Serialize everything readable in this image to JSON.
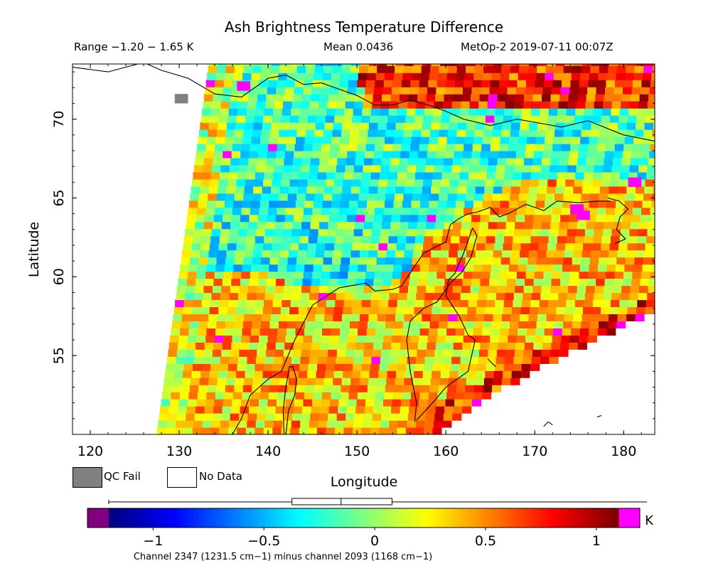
{
  "header": {
    "title": "Ash Brightness Temperature Difference",
    "range": "Range −1.20 − 1.65 K",
    "mean": "Mean 0.0436",
    "satellite": "MetOp-2 2019-07-11 00:07Z"
  },
  "chart_data": {
    "type": "heatmap",
    "title": "Ash Brightness Temperature Difference",
    "xlabel": "Longitude",
    "ylabel": "Latitude",
    "xlim": [
      118,
      183.5
    ],
    "ylim": [
      50,
      73.5
    ],
    "x_ticks": [
      "120",
      "130",
      "140",
      "150",
      "160",
      "170",
      "180"
    ],
    "y_ticks": [
      "55",
      "60",
      "65",
      "70"
    ],
    "value_range": [
      -1.2,
      1.65
    ],
    "mean": 0.0436,
    "units": "K",
    "colorbar": {
      "ticks": [
        "−1",
        "−0.5",
        "0",
        "0.5",
        "1"
      ],
      "unit_label": "K",
      "range": [
        -1.2,
        1.1
      ],
      "box_plot": {
        "min": -1.2,
        "q1": -0.23,
        "median": 0.03,
        "q3": 0.3,
        "max": 1.65
      },
      "under_color": "#800080",
      "over_color": "#ff00ff"
    },
    "legend": [
      {
        "label": "QC Fail",
        "color": "#808080"
      },
      {
        "label": "No Data",
        "color": "#ffffff"
      }
    ],
    "caption": "Channel 2347 (1231.5 cm−1) minus channel 2093 (1168 cm−1)"
  }
}
